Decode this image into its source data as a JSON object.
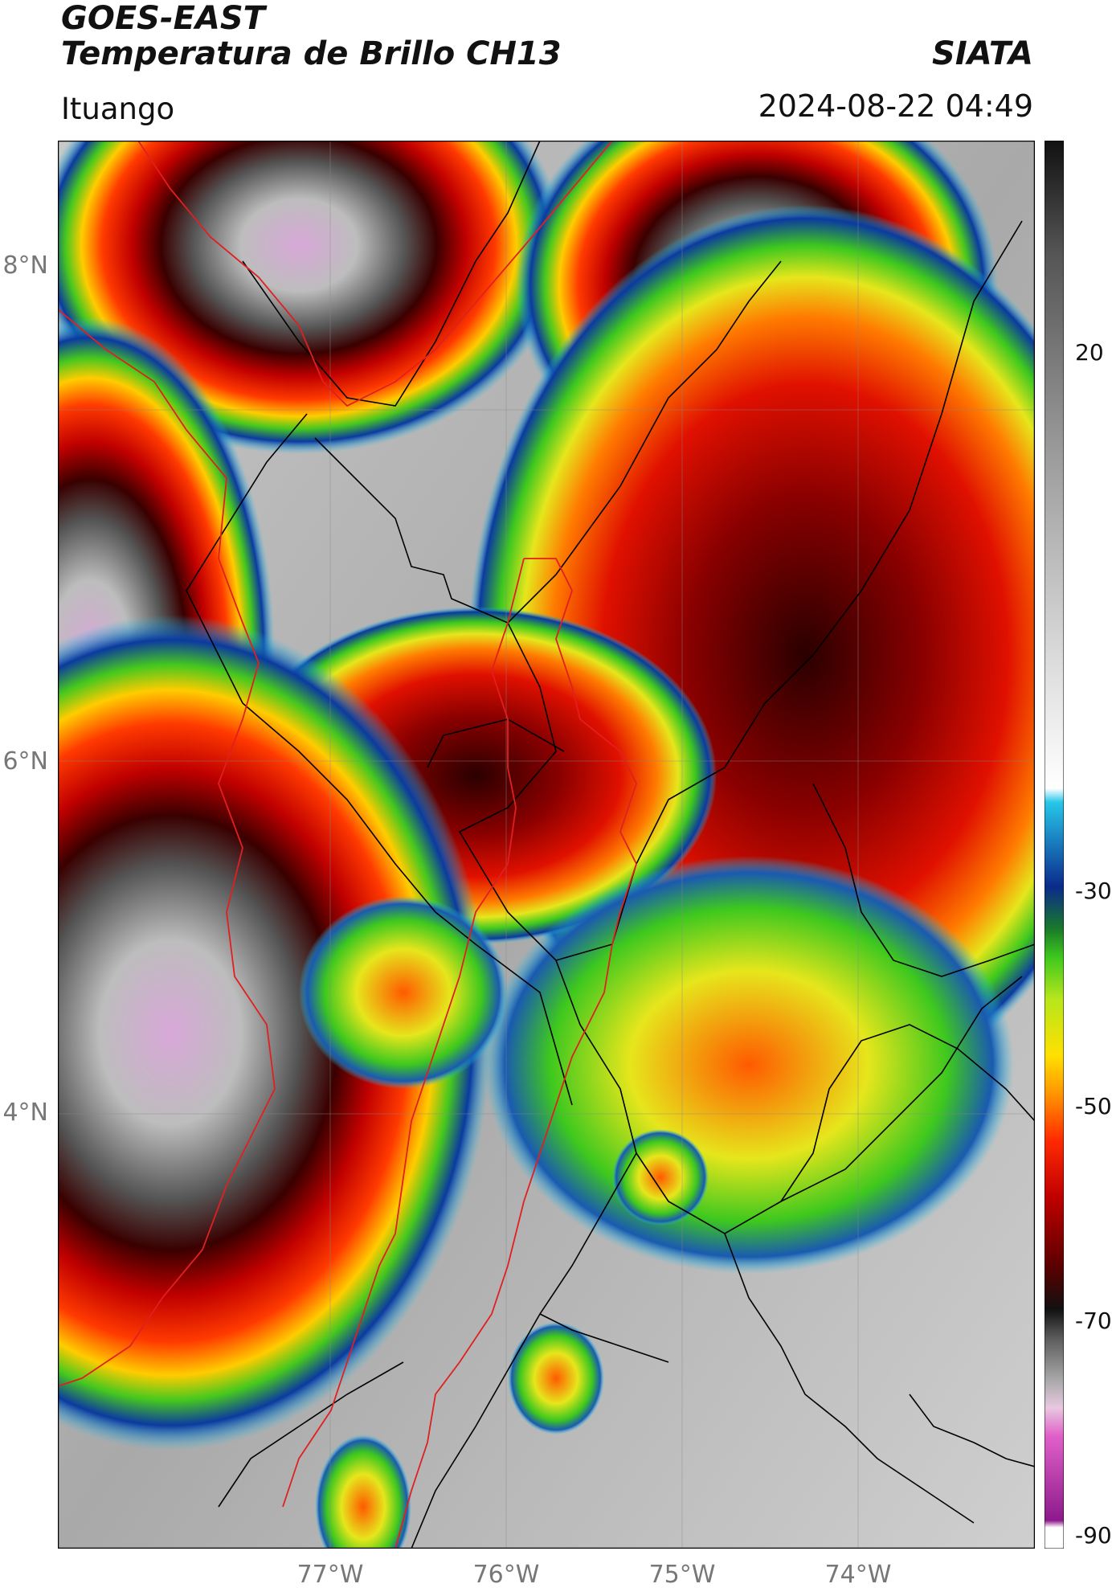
{
  "header": {
    "satellite": "GOES-EAST",
    "product": "Temperatura de Brillo CH13",
    "brand": "SIATA",
    "location": "Ituango",
    "timestamp": "2024-08-22 04:49"
  },
  "map": {
    "lat_labels": [
      "8°N",
      "6°N",
      "4°N"
    ],
    "lon_labels": [
      "77°W",
      "76°W",
      "75°W",
      "74°W"
    ]
  },
  "colorbar": {
    "labels": [
      "20",
      "-30",
      "-50",
      "-70",
      "-90"
    ],
    "stops": [
      "#ffffff",
      "#f0f0f0",
      "#d8d8d8",
      "#bfbfbf",
      "#9a9a9a",
      "#6e6e6e",
      "#333333",
      "#26c6ea",
      "#0b2a8c",
      "#1a7a2a",
      "#3ec81e",
      "#b8e61c",
      "#ffe000",
      "#ff8c00",
      "#ff2a00",
      "#c00000",
      "#5a0000",
      "#111111",
      "#5a5a5a",
      "#a8a8a8",
      "#e8c8e0",
      "#e060c8",
      "#8c1a8c",
      "#ffffff"
    ]
  }
}
